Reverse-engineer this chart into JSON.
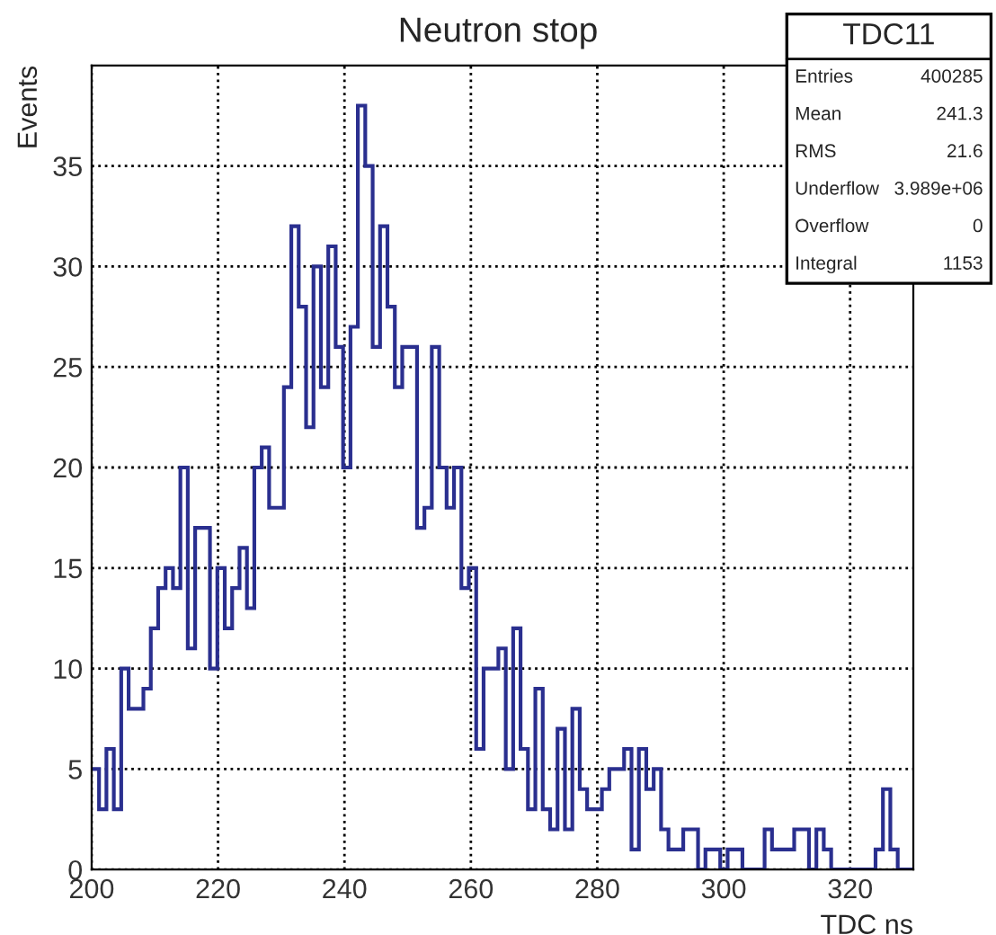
{
  "chart_data": {
    "type": "histogram",
    "title": "Neutron stop",
    "xlabel": "TDC ns",
    "ylabel": "Events",
    "color": "#2a2f8f",
    "bins": [
      200.0,
      201.17,
      202.34,
      203.51,
      204.68,
      205.85,
      207.02,
      208.19,
      209.36,
      210.53,
      211.7,
      212.87,
      214.04,
      215.21,
      216.38,
      217.55,
      218.72,
      219.89,
      221.06,
      222.23,
      223.4,
      224.57,
      225.74,
      226.91,
      228.08,
      229.25,
      230.42,
      231.59,
      232.76,
      233.93,
      235.1,
      236.27,
      237.44,
      238.61,
      239.78,
      240.95,
      242.12,
      243.29,
      244.46,
      245.63,
      246.8,
      247.97,
      249.14,
      250.31,
      251.48,
      252.65,
      253.82,
      254.99,
      256.16,
      257.33,
      258.5,
      259.67,
      260.84,
      262.01,
      263.18,
      264.35,
      265.52,
      266.69,
      267.86,
      269.03,
      270.2,
      271.37,
      272.54,
      273.71,
      274.88,
      276.05,
      277.22,
      278.39,
      279.56,
      280.73,
      281.9,
      283.07,
      284.24,
      285.41,
      286.58,
      287.75,
      288.92,
      290.09,
      291.26,
      292.43,
      293.6,
      294.77,
      295.94,
      297.11,
      298.28,
      299.45,
      300.62,
      301.79,
      302.96,
      304.13,
      305.3,
      306.47,
      307.64,
      308.81,
      309.98,
      311.15,
      312.32,
      313.49,
      314.66,
      315.83,
      317.0,
      318.17,
      319.34,
      320.51,
      321.68,
      322.85,
      324.02,
      325.19,
      326.36,
      327.53,
      328.7,
      329.87
    ],
    "values": [
      5,
      3,
      6,
      3,
      10,
      8,
      8,
      9,
      12,
      14,
      15,
      14,
      20,
      11,
      17,
      17,
      10,
      15,
      12,
      14,
      16,
      13,
      20,
      21,
      18,
      18,
      24,
      32,
      28,
      22,
      30,
      24,
      31,
      26,
      20,
      27,
      38,
      35,
      26,
      32,
      28,
      24,
      26,
      26,
      17,
      18,
      26,
      20,
      18,
      20,
      14,
      15,
      6,
      10,
      10,
      11,
      5,
      12,
      6,
      3,
      9,
      3,
      2,
      7,
      2,
      8,
      4,
      3,
      3,
      4,
      5,
      5,
      6,
      1,
      6,
      4,
      5,
      2,
      1,
      1,
      2,
      2,
      0,
      1,
      1,
      0,
      1,
      1,
      0,
      0,
      0,
      2,
      1,
      1,
      1,
      2,
      2,
      0,
      2,
      1,
      0,
      0,
      0,
      0,
      0,
      0,
      1,
      4,
      1,
      0,
      0
    ],
    "xlim": [
      200,
      330
    ],
    "ylim": [
      0,
      40
    ],
    "xticks": [
      200,
      220,
      240,
      260,
      280,
      300,
      320
    ],
    "yticks": [
      0,
      5,
      10,
      15,
      20,
      25,
      30,
      35
    ],
    "grid": true,
    "annotations": [
      "TDC11",
      "Entries",
      "400285",
      "Mean",
      "241.3",
      "RMS",
      "21.6",
      "Underflow",
      "3.989e+06",
      "Overflow",
      "0",
      "Integral",
      "1153"
    ]
  }
}
